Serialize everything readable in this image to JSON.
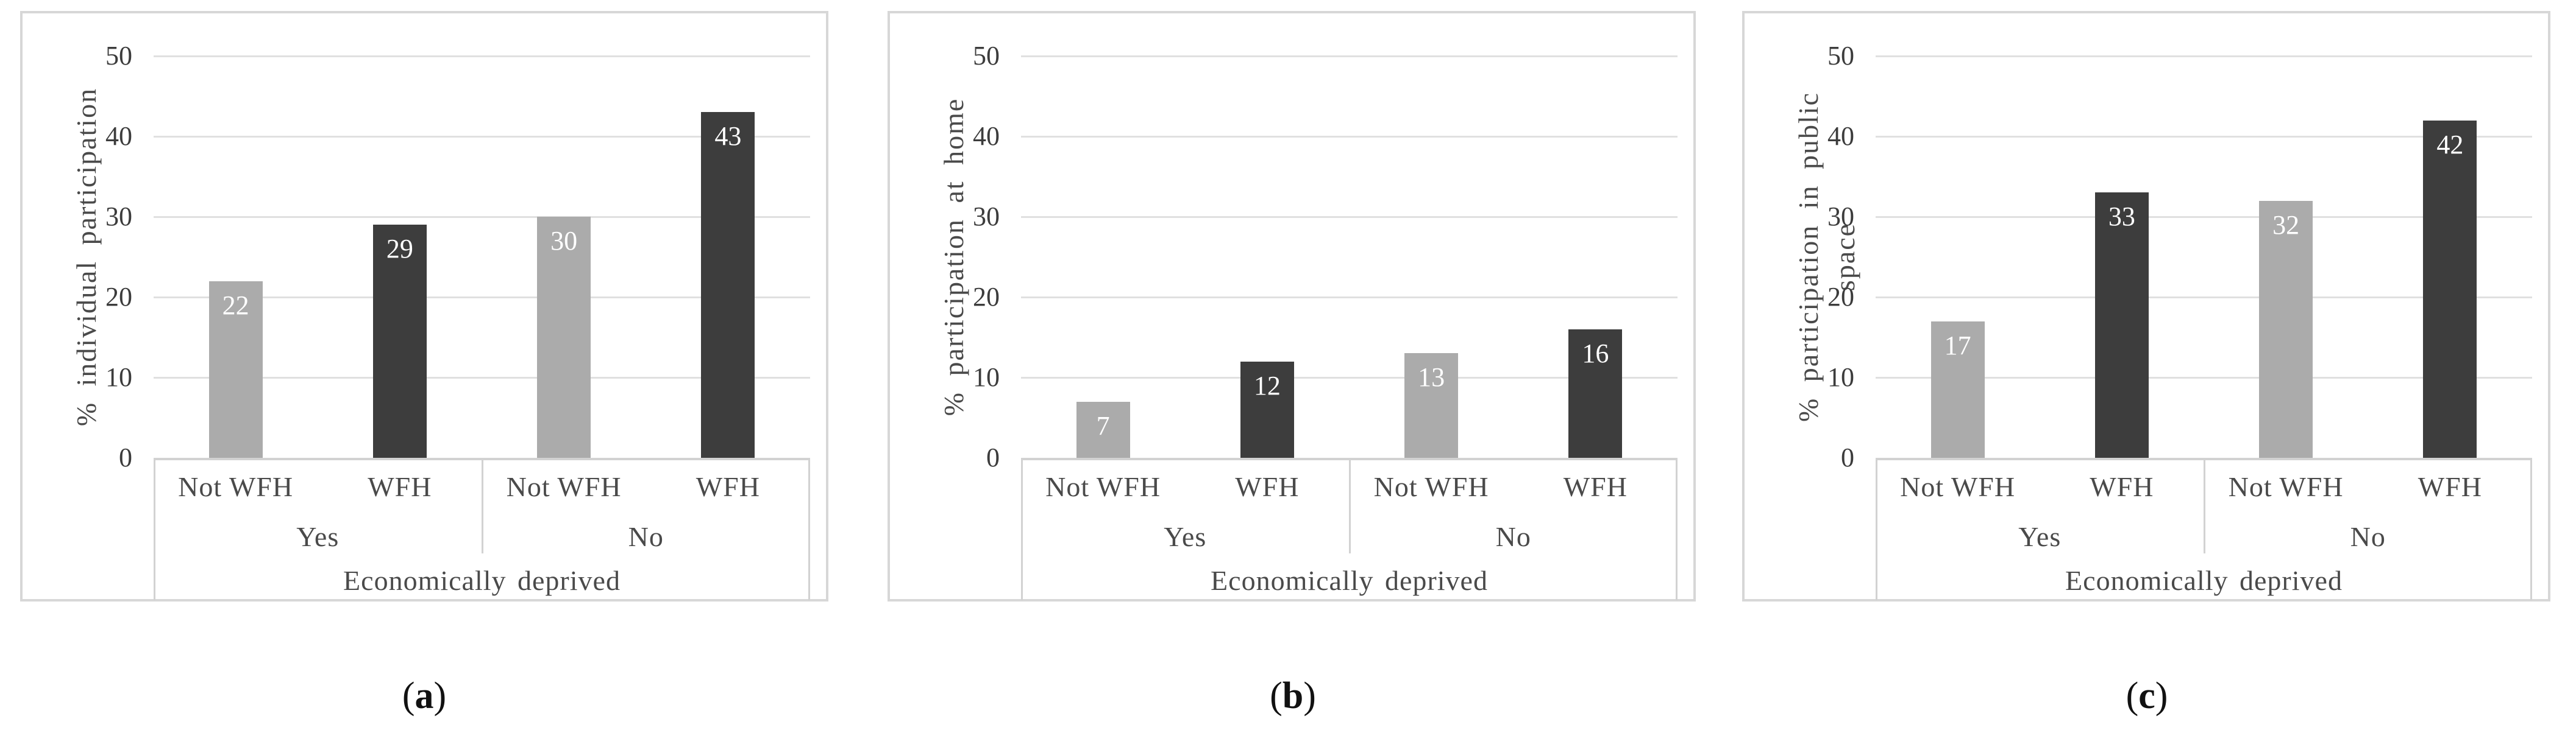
{
  "figure": {
    "captions": [
      {
        "open": "(",
        "letter": "a",
        "close": ")"
      },
      {
        "open": "(",
        "letter": "b",
        "close": ")"
      },
      {
        "open": "(",
        "letter": "c",
        "close": ")"
      }
    ]
  },
  "styles": {
    "bar_light": "#ABABAB",
    "bar_dark": "#3D3D3D",
    "gridline": "#E0E0E0",
    "axis_table_line": "#D2D2D2",
    "panel_border": "#D7D7D7",
    "text": "#4A4A4A",
    "value_label_color": "#FFFFFF"
  },
  "chart_data": [
    {
      "type": "bar",
      "title": "",
      "ylabel": "% individual participation",
      "xlabel": "Economically deprived",
      "ylim": [
        0,
        50
      ],
      "yticks": [
        0,
        10,
        20,
        30,
        40,
        50
      ],
      "grid": true,
      "legend": "none",
      "group_labels": [
        "Yes",
        "No"
      ],
      "categories": [
        "Not WFH",
        "WFH",
        "Not WFH",
        "WFH"
      ],
      "values": [
        22,
        29,
        30,
        43
      ],
      "bar_colors": [
        "#ABABAB",
        "#3D3D3D",
        "#ABABAB",
        "#3D3D3D"
      ],
      "value_label_position": "inside-end"
    },
    {
      "type": "bar",
      "title": "",
      "ylabel": "% participation at home",
      "xlabel": "Economically deprived",
      "ylim": [
        0,
        50
      ],
      "yticks": [
        0,
        10,
        20,
        30,
        40,
        50
      ],
      "grid": true,
      "legend": "none",
      "group_labels": [
        "Yes",
        "No"
      ],
      "categories": [
        "Not WFH",
        "WFH",
        "Not WFH",
        "WFH"
      ],
      "values": [
        7,
        12,
        13,
        16
      ],
      "bar_colors": [
        "#ABABAB",
        "#3D3D3D",
        "#ABABAB",
        "#3D3D3D"
      ],
      "value_label_position": "inside-end"
    },
    {
      "type": "bar",
      "title": "",
      "ylabel": "% participation in public space",
      "xlabel": "Economically deprived",
      "ylim": [
        0,
        50
      ],
      "yticks": [
        0,
        10,
        20,
        30,
        40,
        50
      ],
      "grid": true,
      "legend": "none",
      "group_labels": [
        "Yes",
        "No"
      ],
      "categories": [
        "Not WFH",
        "WFH",
        "Not WFH",
        "WFH"
      ],
      "values": [
        17,
        33,
        32,
        42
      ],
      "bar_colors": [
        "#ABABAB",
        "#3D3D3D",
        "#ABABAB",
        "#3D3D3D"
      ],
      "value_label_position": "inside-end"
    }
  ]
}
